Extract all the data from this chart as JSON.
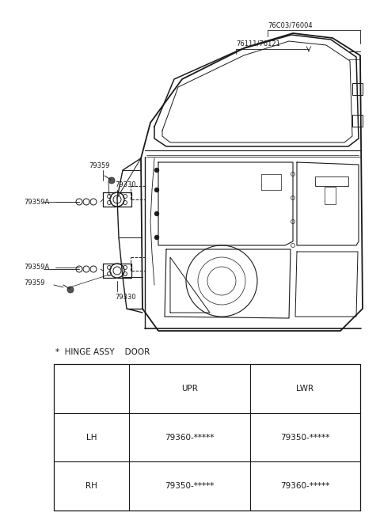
{
  "bg_color": "#ffffff",
  "lc": "#1a1a1a",
  "fig_width": 4.8,
  "fig_height": 6.57,
  "dpi": 100,
  "table_header": [
    "",
    "UPR",
    "LWR"
  ],
  "table_rows": [
    [
      "LH",
      "79360-*****",
      "79350-*****"
    ],
    [
      "RH",
      "79350-*****",
      "79360-*****"
    ]
  ],
  "hinge_label": "*  HINGE ASSY    DOOR",
  "label_79C03": "76C03/76004",
  "label_76111": "76111/76121",
  "label_79359_1": "79359",
  "label_79330_1": "79330",
  "label_79359A_1": "79359A",
  "label_79359A_2": "79359A",
  "label_79359_2": "79359",
  "label_79330_2": "79330",
  "fs_label": 6.0,
  "fs_table": 7.5,
  "fs_hinge": 7.5
}
